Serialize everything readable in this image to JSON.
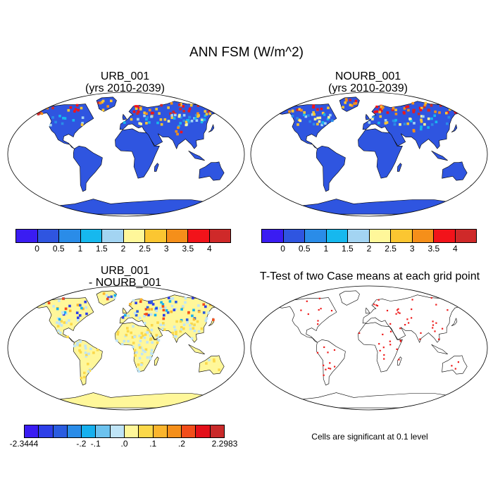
{
  "title": "ANN FSM (W/m^2)",
  "panels": {
    "p1": {
      "title1": "URB_001",
      "title2": "(yrs 2010-2039)"
    },
    "p2": {
      "title1": "NOURB_001",
      "title2": "(yrs 2010-2039)"
    },
    "p3": {
      "title1": "URB_001",
      "title2": "- NOURB_001"
    },
    "p4": {
      "title1": "T-Test of two Case means at each grid point"
    }
  },
  "colorbar_top": {
    "colors": [
      "#3a1cf2",
      "#2f55e0",
      "#2a8ce8",
      "#16b8ee",
      "#a3d4f2",
      "#fff79a",
      "#fbc631",
      "#f58f1a",
      "#f2131a",
      "#cf2929"
    ],
    "labels": [
      "0",
      "0.5",
      "1",
      "1.5",
      "2",
      "2.5",
      "3",
      "3.5",
      "4"
    ]
  },
  "colorbar_diff": {
    "colors": [
      "#3a1cf2",
      "#2d3fe8",
      "#2a5ce0",
      "#2a8ce8",
      "#16b0ee",
      "#6cc2ee",
      "#bfe4f6",
      "#fff79a",
      "#fbd84a",
      "#fbb52d",
      "#f58f1a",
      "#f24d1a",
      "#e3101a",
      "#c92a2a"
    ],
    "labels": [
      "-2.3444",
      "-.2",
      "-.1",
      ".0",
      ".1",
      ".2",
      "2.2983"
    ]
  },
  "note": "Cells are significant at 0.1 level"
}
